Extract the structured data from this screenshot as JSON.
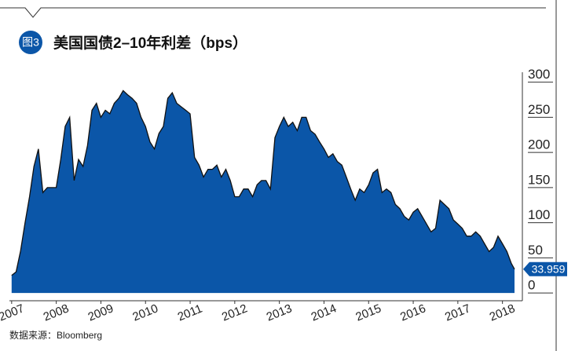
{
  "chart_data": {
    "type": "area",
    "title": "美国国债2–10年利差（bps）",
    "badge": "图3",
    "source": "数据来源：Bloomberg",
    "color": "#0b56a8",
    "xlim": [
      2006.95,
      2018.27
    ],
    "ylim": [
      -11,
      313
    ],
    "xticks": [
      2007,
      2008,
      2009,
      2010,
      2011,
      2012,
      2013,
      2014,
      2015,
      2016,
      2017,
      2018
    ],
    "yticks": [
      0,
      50,
      100,
      150,
      200,
      250,
      300
    ],
    "x": [
      2007,
      2007.1,
      2007.2,
      2007.3,
      2007.4,
      2007.5,
      2007.6,
      2007.7,
      2007.8,
      2007.9,
      2008,
      2008.1,
      2008.2,
      2008.3,
      2008.4,
      2008.5,
      2008.6,
      2008.7,
      2008.8,
      2008.9,
      2009,
      2009.1,
      2009.2,
      2009.3,
      2009.4,
      2009.5,
      2009.6,
      2009.7,
      2009.8,
      2009.9,
      2010,
      2010.1,
      2010.2,
      2010.3,
      2010.4,
      2010.5,
      2010.6,
      2010.7,
      2010.8,
      2010.9,
      2011,
      2011.1,
      2011.2,
      2011.3,
      2011.4,
      2011.5,
      2011.6,
      2011.7,
      2011.8,
      2011.9,
      2012,
      2012.1,
      2012.2,
      2012.3,
      2012.4,
      2012.5,
      2012.6,
      2012.7,
      2012.8,
      2012.9,
      2013,
      2013.1,
      2013.2,
      2013.3,
      2013.4,
      2013.5,
      2013.6,
      2013.7,
      2013.8,
      2013.9,
      2014,
      2014.1,
      2014.2,
      2014.3,
      2014.4,
      2014.5,
      2014.6,
      2014.7,
      2014.8,
      2014.9,
      2015,
      2015.1,
      2015.2,
      2015.3,
      2015.4,
      2015.5,
      2015.6,
      2015.7,
      2015.8,
      2015.9,
      2016,
      2016.1,
      2016.2,
      2016.3,
      2016.4,
      2016.5,
      2016.6,
      2016.7,
      2016.8,
      2016.9,
      2017,
      2017.1,
      2017.2,
      2017.3,
      2017.4,
      2017.5,
      2017.6,
      2017.7,
      2017.8,
      2017.9,
      2018,
      2018.1,
      2018.2,
      2018.27
    ],
    "values": [
      25,
      30,
      60,
      100,
      137,
      180,
      205,
      143,
      150,
      150,
      150,
      190,
      237,
      250,
      160,
      190,
      180,
      210,
      260,
      270,
      250,
      260,
      255,
      270,
      277,
      288,
      282,
      277,
      270,
      250,
      237,
      215,
      205,
      227,
      237,
      277,
      285,
      270,
      265,
      260,
      255,
      193,
      182,
      165,
      176,
      176,
      182,
      165,
      176,
      160,
      137,
      137,
      148,
      148,
      137,
      154,
      160,
      160,
      148,
      221,
      237,
      250,
      237,
      243,
      231,
      250,
      250,
      231,
      226,
      215,
      205,
      193,
      198,
      187,
      182,
      165,
      148,
      132,
      148,
      143,
      154,
      171,
      176,
      143,
      148,
      143,
      126,
      120,
      109,
      104,
      115,
      120,
      109,
      98,
      87,
      92,
      132,
      126,
      120,
      104,
      98,
      92,
      81,
      81,
      87,
      81,
      70,
      59,
      65,
      81,
      70,
      59,
      42,
      33.959
    ]
  }
}
